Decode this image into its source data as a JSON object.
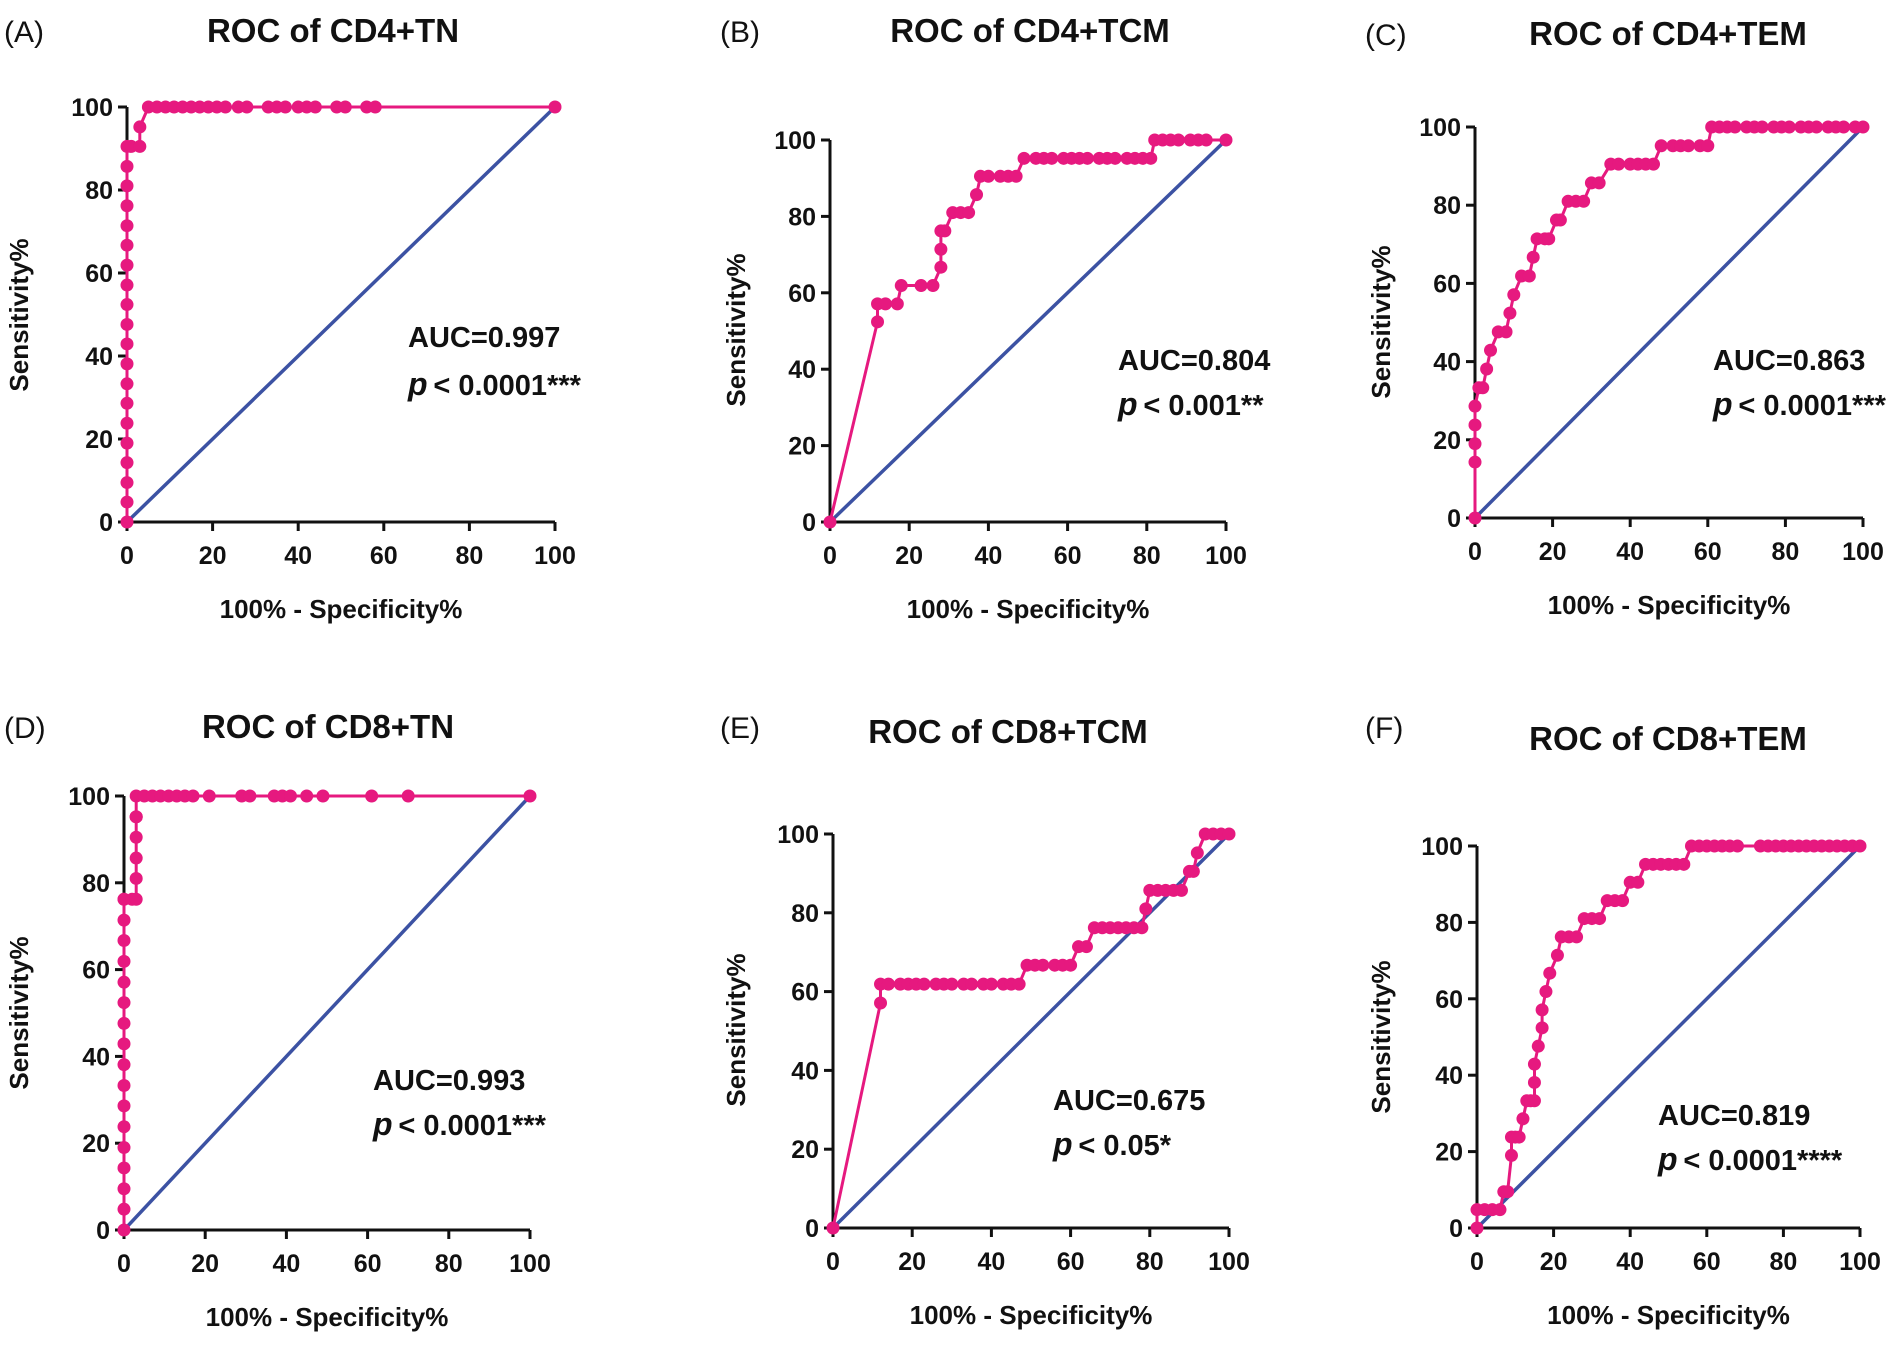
{
  "figure": {
    "xlabel": "100% - Specificity%",
    "ylabel": "Sensitivity%"
  },
  "colors": {
    "roc_curve": "#e6197f",
    "reference_line": "#3c52a3",
    "axis": "#111111"
  },
  "chart_data": [
    {
      "panel": "(A)",
      "type": "line",
      "title": "ROC of  CD4+TN",
      "xlabel": "100% - Specificity%",
      "ylabel": "Sensitivity%",
      "xlim": [
        0,
        100
      ],
      "ylim": [
        0,
        100
      ],
      "xticks": [
        0,
        20,
        40,
        60,
        80,
        100
      ],
      "yticks": [
        0,
        20,
        40,
        60,
        80,
        100
      ],
      "annotations": {
        "auc": "AUC=0.997",
        "p_symbol": "p",
        "p_value": " < 0.0001***"
      },
      "series": [
        {
          "name": "Reference line",
          "x": [
            0,
            100
          ],
          "y": [
            0,
            100
          ]
        },
        {
          "name": "ROC curve",
          "x": [
            0,
            0,
            0,
            0,
            0,
            0,
            0,
            0,
            0,
            0,
            0,
            0,
            0,
            0,
            0,
            0,
            0,
            0,
            0,
            0,
            1,
            3,
            3,
            5,
            7,
            9,
            11,
            13,
            15,
            17,
            19,
            21,
            23,
            26,
            28,
            33,
            35,
            37,
            40,
            42,
            44,
            49,
            51,
            56,
            58,
            100
          ],
          "y": [
            0,
            4.8,
            9.5,
            14.3,
            19,
            23.8,
            28.6,
            33.3,
            38.1,
            42.9,
            47.6,
            52.4,
            57.1,
            61.9,
            66.7,
            71.4,
            76.2,
            81,
            85.7,
            90.5,
            90.5,
            90.5,
            95.2,
            100,
            100,
            100,
            100,
            100,
            100,
            100,
            100,
            100,
            100,
            100,
            100,
            100,
            100,
            100,
            100,
            100,
            100,
            100,
            100,
            100,
            100,
            100
          ]
        }
      ]
    },
    {
      "panel": "(B)",
      "type": "line",
      "title": "ROC of CD4+TCM",
      "xlabel": "100% - Specificity%",
      "ylabel": "Sensitivity%",
      "xlim": [
        0,
        100
      ],
      "ylim": [
        0,
        100
      ],
      "xticks": [
        0,
        20,
        40,
        60,
        80,
        100
      ],
      "yticks": [
        0,
        20,
        40,
        60,
        80,
        100
      ],
      "annotations": {
        "auc": "AUC=0.804",
        "p_symbol": "p",
        "p_value": " < 0.001**"
      },
      "series": [
        {
          "name": "Reference line",
          "x": [
            0,
            100
          ],
          "y": [
            0,
            100
          ]
        },
        {
          "name": "ROC curve",
          "x": [
            0,
            12,
            12,
            14,
            17,
            18,
            23,
            26,
            28,
            28,
            28,
            29,
            31,
            33,
            35,
            37,
            38,
            40,
            43,
            45,
            47,
            49,
            52,
            54,
            56,
            59,
            61,
            63,
            65,
            68,
            70,
            72,
            75,
            77,
            79,
            81,
            82,
            84,
            86,
            88,
            91,
            93,
            95,
            100
          ],
          "y": [
            0,
            52.4,
            57.1,
            57.1,
            57.1,
            61.9,
            61.9,
            61.9,
            66.7,
            71.4,
            76.2,
            76.2,
            81,
            81,
            81,
            85.7,
            90.5,
            90.5,
            90.5,
            90.5,
            90.5,
            95.2,
            95.2,
            95.2,
            95.2,
            95.2,
            95.2,
            95.2,
            95.2,
            95.2,
            95.2,
            95.2,
            95.2,
            95.2,
            95.2,
            95.2,
            100,
            100,
            100,
            100,
            100,
            100,
            100,
            100
          ]
        }
      ]
    },
    {
      "panel": "(C)",
      "type": "line",
      "title": "ROC of  CD4+TEM",
      "xlabel": "100% - Specificity%",
      "ylabel": "Sensitivity%",
      "xlim": [
        0,
        100
      ],
      "ylim": [
        0,
        100
      ],
      "xticks": [
        0,
        20,
        40,
        60,
        80,
        100
      ],
      "yticks": [
        0,
        20,
        40,
        60,
        80,
        100
      ],
      "annotations": {
        "auc": "AUC=0.863",
        "p_symbol": "p",
        "p_value": " < 0.0001***"
      },
      "series": [
        {
          "name": "Reference line",
          "x": [
            0,
            100
          ],
          "y": [
            0,
            100
          ]
        },
        {
          "name": "ROC curve",
          "x": [
            0,
            0,
            0,
            0,
            0,
            1,
            2,
            3,
            4,
            6,
            8,
            9,
            10,
            12,
            14,
            15,
            16,
            18,
            19,
            21,
            22,
            24,
            26,
            28,
            30,
            32,
            35,
            37,
            40,
            42,
            44,
            46,
            48,
            51,
            53,
            55,
            58,
            60,
            61,
            63,
            65,
            67,
            70,
            72,
            74,
            77,
            79,
            81,
            84,
            86,
            88,
            91,
            93,
            95,
            98,
            100
          ],
          "y": [
            0,
            14.3,
            19,
            23.8,
            28.6,
            33.3,
            33.3,
            38.1,
            42.9,
            47.6,
            47.6,
            52.4,
            57.1,
            61.9,
            61.9,
            66.7,
            71.4,
            71.4,
            71.4,
            76.2,
            76.2,
            81,
            81,
            81,
            85.7,
            85.7,
            90.5,
            90.5,
            90.5,
            90.5,
            90.5,
            90.5,
            95.2,
            95.2,
            95.2,
            95.2,
            95.2,
            95.2,
            100,
            100,
            100,
            100,
            100,
            100,
            100,
            100,
            100,
            100,
            100,
            100,
            100,
            100,
            100,
            100,
            100,
            100
          ]
        }
      ]
    },
    {
      "panel": "(D)",
      "type": "line",
      "title": "ROC of  CD8+TN",
      "xlabel": "100% - Specificity%",
      "ylabel": "Sensitivity%",
      "xlim": [
        0,
        100
      ],
      "ylim": [
        0,
        100
      ],
      "xticks": [
        0,
        20,
        40,
        60,
        80,
        100
      ],
      "yticks": [
        0,
        20,
        40,
        60,
        80,
        100
      ],
      "annotations": {
        "auc": "AUC=0.993",
        "p_symbol": "p",
        "p_value": " < 0.0001***"
      },
      "series": [
        {
          "name": "Reference line",
          "x": [
            0,
            100
          ],
          "y": [
            0,
            100
          ]
        },
        {
          "name": "ROC curve",
          "x": [
            0,
            0,
            0,
            0,
            0,
            0,
            0,
            0,
            0,
            0,
            0,
            0,
            0,
            0,
            0,
            0,
            0,
            0,
            2,
            3,
            3,
            3,
            3,
            3,
            3,
            3,
            3,
            5,
            7,
            9,
            11,
            13,
            15,
            17,
            21,
            29,
            31,
            37,
            39,
            41,
            45,
            49,
            61,
            70,
            100
          ],
          "y": [
            0,
            4.8,
            9.5,
            14.3,
            19,
            23.8,
            28.6,
            33.3,
            38.1,
            42.9,
            47.6,
            52.4,
            57.1,
            61.9,
            66.7,
            71.4,
            76.2,
            76.2,
            76.2,
            76.2,
            81,
            85.7,
            90.5,
            95.2,
            95.2,
            95.2,
            100,
            100,
            100,
            100,
            100,
            100,
            100,
            100,
            100,
            100,
            100,
            100,
            100,
            100,
            100,
            100,
            100,
            100,
            100
          ]
        }
      ]
    },
    {
      "panel": "(E)",
      "type": "line",
      "title": "ROC of  CD8+TCM",
      "xlabel": "100% - Specificity%",
      "ylabel": "Sensitivity%",
      "xlim": [
        0,
        100
      ],
      "ylim": [
        0,
        100
      ],
      "xticks": [
        0,
        20,
        40,
        60,
        80,
        100
      ],
      "yticks": [
        0,
        20,
        40,
        60,
        80,
        100
      ],
      "annotations": {
        "auc": "AUC=0.675",
        "p_symbol": "p",
        "p_value": " < 0.05*"
      },
      "series": [
        {
          "name": "Reference line",
          "x": [
            0,
            100
          ],
          "y": [
            0,
            100
          ]
        },
        {
          "name": "ROC curve",
          "x": [
            0,
            12,
            12,
            14,
            17,
            19,
            21,
            23,
            26,
            28,
            30,
            33,
            35,
            38,
            40,
            43,
            45,
            47,
            49,
            51,
            53,
            56,
            58,
            60,
            62,
            64,
            66,
            68,
            70,
            72,
            74,
            76,
            78,
            79,
            80,
            82,
            84,
            86,
            88,
            90,
            91,
            92,
            94,
            96,
            98,
            100
          ],
          "y": [
            0,
            57.1,
            61.9,
            61.9,
            61.9,
            61.9,
            61.9,
            61.9,
            61.9,
            61.9,
            61.9,
            61.9,
            61.9,
            61.9,
            61.9,
            61.9,
            61.9,
            61.9,
            66.7,
            66.7,
            66.7,
            66.7,
            66.7,
            66.7,
            71.4,
            71.4,
            76.2,
            76.2,
            76.2,
            76.2,
            76.2,
            76.2,
            76.2,
            81,
            85.7,
            85.7,
            85.7,
            85.7,
            85.7,
            90.5,
            90.5,
            95.2,
            100,
            100,
            100,
            100
          ]
        }
      ]
    },
    {
      "panel": "(F)",
      "type": "line",
      "title": "ROC of  CD8+TEM",
      "xlabel": "100% - Specificity%",
      "ylabel": "Sensitivity%",
      "xlim": [
        0,
        100
      ],
      "ylim": [
        0,
        100
      ],
      "xticks": [
        0,
        20,
        40,
        60,
        80,
        100
      ],
      "yticks": [
        0,
        20,
        40,
        60,
        80,
        100
      ],
      "annotations": {
        "auc": "AUC=0.819",
        "p_symbol": "p",
        "p_value": " < 0.0001****"
      },
      "series": [
        {
          "name": "Reference line",
          "x": [
            0,
            100
          ],
          "y": [
            0,
            100
          ]
        },
        {
          "name": "ROC curve",
          "x": [
            0,
            0,
            2,
            4,
            6,
            7,
            8,
            9,
            9,
            10,
            11,
            12,
            13,
            14,
            15,
            15,
            15,
            16,
            17,
            17,
            18,
            19,
            21,
            22,
            24,
            26,
            28,
            30,
            32,
            34,
            36,
            38,
            40,
            42,
            44,
            46,
            48,
            50,
            52,
            54,
            56,
            58,
            60,
            62,
            64,
            66,
            68,
            74,
            76,
            78,
            80,
            82,
            84,
            86,
            88,
            90,
            92,
            94,
            96,
            98,
            100
          ],
          "y": [
            0,
            4.8,
            4.8,
            4.8,
            4.8,
            9.5,
            9.5,
            19,
            23.8,
            23.8,
            23.8,
            28.6,
            33.3,
            33.3,
            33.3,
            38.1,
            42.9,
            47.6,
            52.4,
            57.1,
            61.9,
            66.7,
            71.4,
            76.2,
            76.2,
            76.2,
            81,
            81,
            81,
            85.7,
            85.7,
            85.7,
            90.5,
            90.5,
            95.2,
            95.2,
            95.2,
            95.2,
            95.2,
            95.2,
            100,
            100,
            100,
            100,
            100,
            100,
            100,
            100,
            100,
            100,
            100,
            100,
            100,
            100,
            100,
            100,
            100,
            100,
            100,
            100,
            100
          ]
        }
      ]
    }
  ]
}
